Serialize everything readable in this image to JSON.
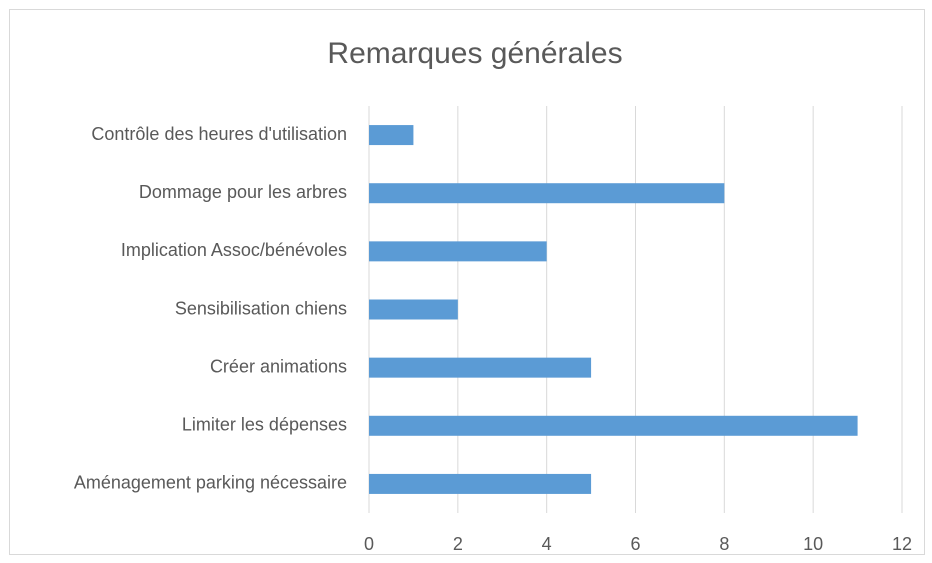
{
  "chart_data": {
    "type": "bar",
    "orientation": "horizontal",
    "title": "Remarques générales",
    "categories": [
      "Contrôle des heures d'utilisation",
      "Dommage pour les arbres",
      "Implication Assoc/bénévoles",
      "Sensibilisation chiens",
      "Créer animations",
      "Limiter les dépenses",
      "Aménagement parking nécessaire"
    ],
    "values": [
      1,
      8,
      4,
      2,
      5,
      11,
      5
    ],
    "color": "#5b9bd5",
    "xlim": [
      0,
      12
    ],
    "xticks": [
      0,
      2,
      4,
      6,
      8,
      10,
      12
    ],
    "grid": true
  }
}
